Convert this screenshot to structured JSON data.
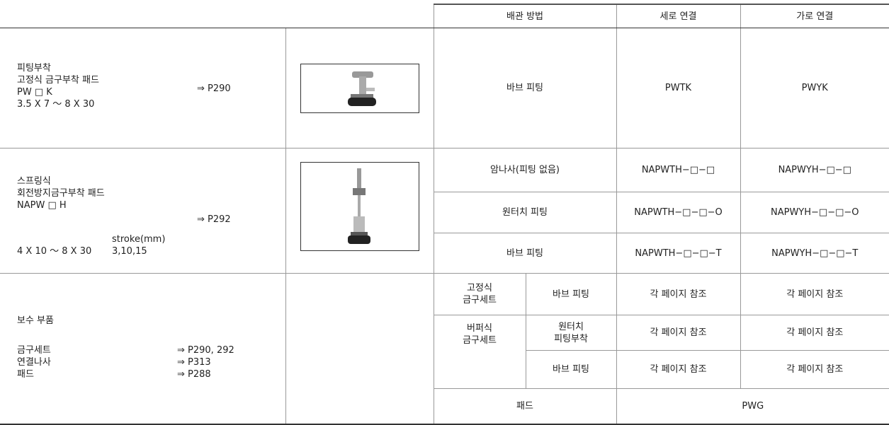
{
  "header": {
    "columns": [
      "배관 방법",
      "세로 연결",
      "가로 연결"
    ]
  },
  "rows": [
    {
      "description": [
        "피팅부착",
        "고정식 금구부착 패드",
        "PW □ K",
        "3.5 X 7 ～ 8 X 30"
      ],
      "reference": "⇒ P290",
      "fittings": [
        {
          "method": "바브 피팅",
          "vertical": "PWTK",
          "horizontal": "PWYK"
        }
      ]
    },
    {
      "description": [
        "스프링식",
        "회전방지금구부착 패드",
        "NAPW □ H"
      ],
      "stroke_label": "stroke(mm)",
      "size": "4 X 10 ～ 8 X 30",
      "stroke": "3,10,15",
      "reference": "⇒ P292",
      "fittings": [
        {
          "method": "암나사(피팅 없음)",
          "vertical": "NAPWTH−□−□",
          "horizontal": "NAPWYH−□−□"
        },
        {
          "method": "원터치 피팅",
          "vertical": "NAPWTH−□−□−O",
          "horizontal": "NAPWYH−□−□−O"
        },
        {
          "method": "바브 피팅",
          "vertical": "NAPWTH−□−□−T",
          "horizontal": "NAPWYH−□−□−T"
        }
      ]
    },
    {
      "title": "보수 부품",
      "items": [
        {
          "name": "금구세트",
          "reference": "⇒ P290, 292"
        },
        {
          "name": "연결나사",
          "reference": "⇒ P313"
        },
        {
          "name": "패드",
          "reference": "⇒ P288"
        }
      ],
      "sets": [
        {
          "type": [
            "고정식",
            "금구세트"
          ],
          "fittings": [
            {
              "method": [
                "바브 피팅"
              ],
              "vertical": "각 페이지 참조",
              "horizontal": "각 페이지 참조"
            }
          ]
        },
        {
          "type": [
            "버퍼식",
            "금구세트"
          ],
          "fittings": [
            {
              "method": [
                "원터치",
                "피팅부착"
              ],
              "vertical": "각 페이지 참조",
              "horizontal": "각 페이지 참조"
            },
            {
              "method": [
                "바브 피팅"
              ],
              "vertical": "각 페이지 참조",
              "horizontal": "각 페이지 참조"
            }
          ]
        }
      ],
      "pad": {
        "method": "패드",
        "model": "PWG"
      }
    }
  ]
}
